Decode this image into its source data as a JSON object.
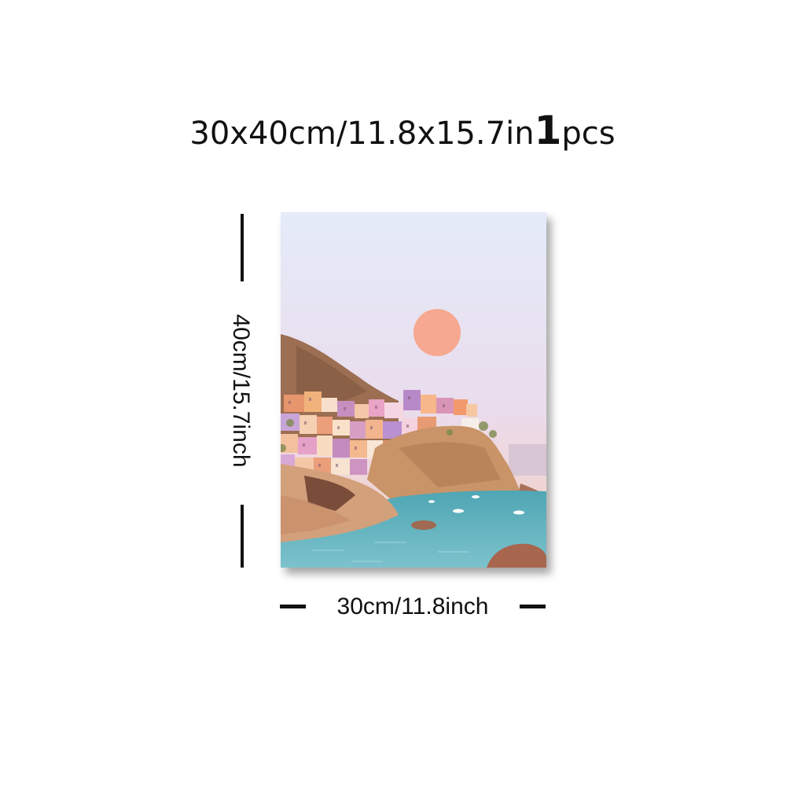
{
  "headline": {
    "size_text": "30x40cm/11.8x15.7in",
    "count": "1",
    "unit": "pcs"
  },
  "dimensions": {
    "height_label": "40cm/15.7inch",
    "width_label": "30cm/11.8inch"
  },
  "artwork": {
    "subject": "coastal-cliff-village-sunset",
    "colors": {
      "sky_top": "#e4ebf9",
      "sky_bottom": "#f6cdbd",
      "sun": "#f6a890",
      "hill": "#9c6e52",
      "cliff": "#c89468",
      "sea": "#6cb8c4"
    }
  }
}
